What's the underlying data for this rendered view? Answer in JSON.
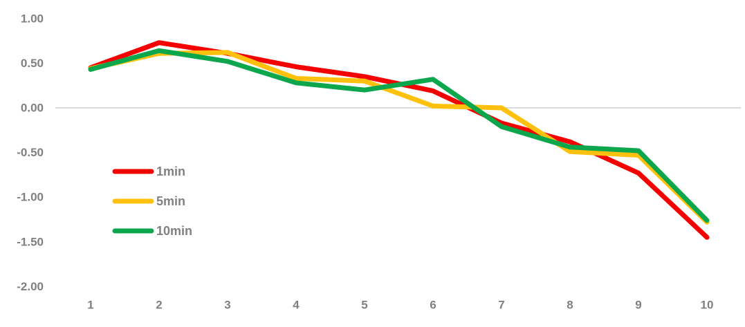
{
  "chart_data": {
    "type": "line",
    "title": "",
    "xlabel": "",
    "ylabel": "",
    "x": [
      1,
      2,
      3,
      4,
      5,
      6,
      7,
      8,
      9,
      10
    ],
    "x_tick_labels": [
      "1",
      "2",
      "3",
      "4",
      "5",
      "6",
      "7",
      "8",
      "9",
      "10"
    ],
    "y_ticks": [
      1.0,
      0.5,
      0.0,
      -0.5,
      -1.0,
      -1.5,
      -2.0
    ],
    "y_tick_labels": [
      "1.00",
      "0.50",
      "0.00",
      "-0.50",
      "-1.00",
      "-1.50",
      "-2.00"
    ],
    "ylim": [
      -2.0,
      1.0
    ],
    "grid": "zero-line-only",
    "legend_position": "inside-left-middle",
    "series": [
      {
        "name": "1min",
        "color": "#f50000",
        "values": [
          0.45,
          0.73,
          0.61,
          0.46,
          0.35,
          0.19,
          -0.17,
          -0.38,
          -0.73,
          -1.45
        ]
      },
      {
        "name": "5min",
        "color": "#ffc10d",
        "values": [
          0.44,
          0.61,
          0.62,
          0.33,
          0.3,
          0.02,
          0.0,
          -0.49,
          -0.53,
          -1.28
        ]
      },
      {
        "name": "10min",
        "color": "#0ca64d",
        "values": [
          0.43,
          0.64,
          0.52,
          0.28,
          0.2,
          0.32,
          -0.21,
          -0.44,
          -0.48,
          -1.26
        ]
      }
    ],
    "colors": {
      "tick_label": "#808080",
      "legend_label": "#808080",
      "zero_gridline": "#d9d9d9",
      "background": "#ffffff"
    }
  }
}
